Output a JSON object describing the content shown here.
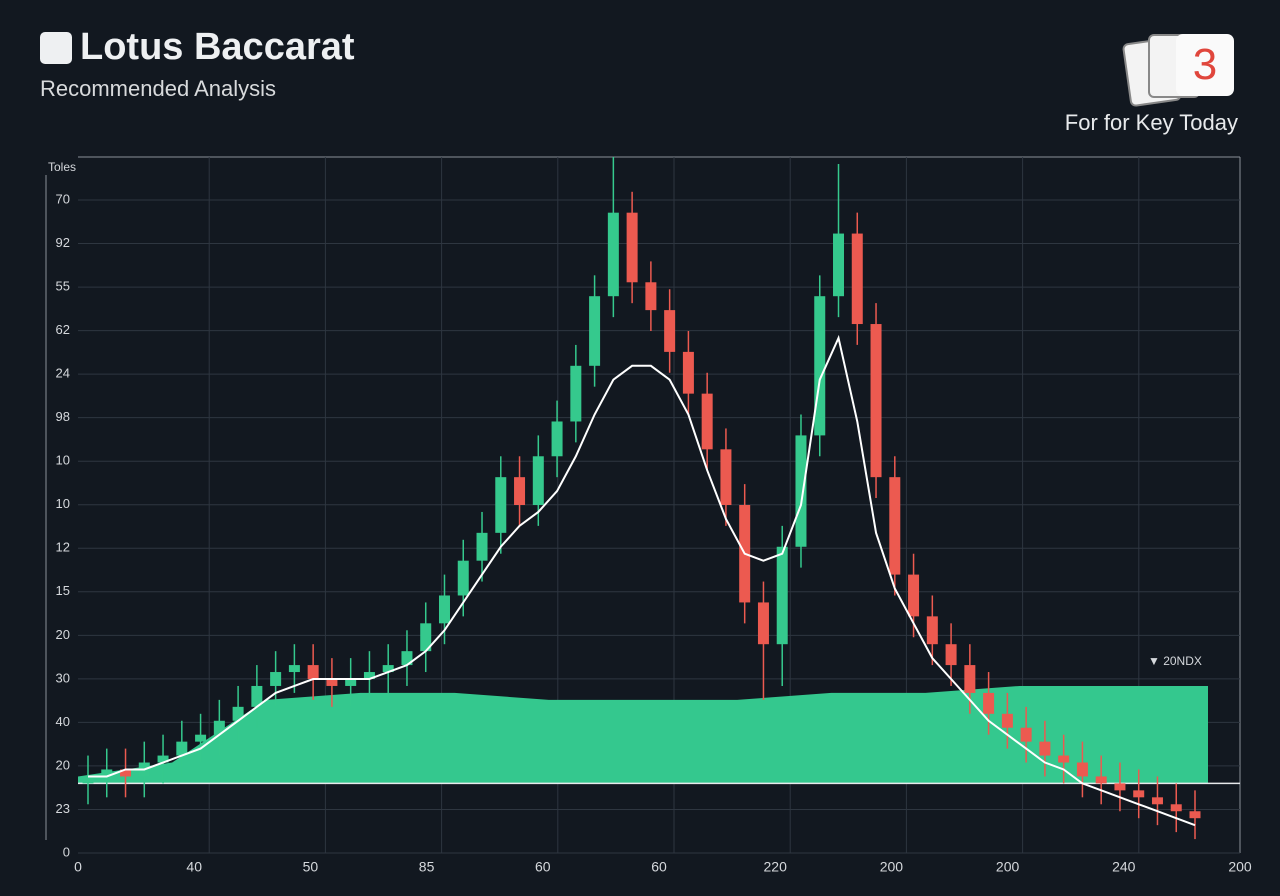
{
  "header": {
    "title": "Lotus Baccarat",
    "subtitle": "Recommended Analysis",
    "badge": "3",
    "badge_caption": "For for Key Today"
  },
  "chart_data": {
    "type": "candlestick",
    "y_axis_title": "Toles",
    "y_labels": [
      70,
      92,
      55,
      62,
      24,
      98,
      10,
      10,
      12,
      15,
      20,
      30,
      40,
      20,
      23,
      0
    ],
    "x_labels": [
      0,
      40,
      50,
      85,
      60,
      60,
      220,
      200,
      200,
      240,
      200
    ],
    "ylim": [
      0,
      100
    ],
    "grid": true,
    "up_color": "#35c98d",
    "down_color": "#ec5a50",
    "trend_color": "#ffffff",
    "area_color": "#34c88e",
    "open": [
      10,
      11,
      12,
      11,
      13,
      14,
      16,
      17,
      19,
      21,
      24,
      26,
      27,
      25,
      24,
      25,
      26,
      27,
      29,
      33,
      37,
      42,
      46,
      54,
      50,
      57,
      62,
      70,
      80,
      92,
      82,
      78,
      72,
      66,
      58,
      50,
      36,
      30,
      44,
      60,
      80,
      89,
      76,
      54,
      40,
      34,
      30,
      27,
      23,
      20,
      18,
      16,
      14,
      13,
      11,
      10,
      9,
      8,
      7,
      6
    ],
    "high": [
      14,
      15,
      15,
      16,
      17,
      19,
      20,
      22,
      24,
      27,
      29,
      30,
      30,
      28,
      28,
      29,
      30,
      32,
      36,
      40,
      45,
      49,
      57,
      57,
      60,
      65,
      73,
      83,
      100,
      95,
      85,
      81,
      75,
      69,
      61,
      53,
      39,
      47,
      63,
      83,
      99,
      92,
      79,
      57,
      43,
      37,
      33,
      30,
      26,
      23,
      21,
      19,
      17,
      16,
      14,
      13,
      12,
      11,
      10,
      9
    ],
    "low": [
      7,
      8,
      8,
      8,
      10,
      11,
      13,
      14,
      16,
      18,
      21,
      23,
      22,
      21,
      21,
      22,
      23,
      24,
      26,
      30,
      34,
      39,
      43,
      47,
      47,
      54,
      59,
      67,
      77,
      79,
      75,
      69,
      63,
      55,
      47,
      33,
      22,
      24,
      41,
      57,
      77,
      73,
      51,
      37,
      31,
      27,
      24,
      20,
      17,
      15,
      13,
      11,
      10,
      8,
      7,
      6,
      5,
      4,
      3,
      2
    ],
    "close": [
      11,
      12,
      11,
      13,
      14,
      16,
      17,
      19,
      21,
      24,
      26,
      27,
      25,
      24,
      25,
      26,
      27,
      29,
      33,
      37,
      42,
      46,
      54,
      50,
      57,
      62,
      70,
      80,
      92,
      82,
      78,
      72,
      66,
      58,
      50,
      36,
      30,
      44,
      60,
      80,
      89,
      76,
      54,
      40,
      34,
      30,
      27,
      23,
      20,
      18,
      16,
      14,
      13,
      11,
      10,
      9,
      8,
      7,
      6,
      5
    ],
    "trend": [
      11,
      11,
      12,
      12,
      13,
      14,
      15,
      17,
      19,
      21,
      23,
      24,
      25,
      25,
      25,
      25,
      26,
      27,
      29,
      32,
      36,
      40,
      44,
      47,
      49,
      52,
      57,
      63,
      68,
      70,
      70,
      68,
      63,
      55,
      48,
      43,
      42,
      43,
      50,
      68,
      74,
      62,
      46,
      38,
      33,
      28,
      25,
      22,
      19,
      17,
      15,
      13,
      12,
      10,
      9,
      8,
      7,
      6,
      5,
      4
    ],
    "area": [
      11,
      13,
      22,
      23,
      23,
      22,
      22,
      22,
      23,
      23,
      24,
      24,
      24
    ],
    "baseline": 10,
    "annotation": "▼ 20NDX"
  }
}
